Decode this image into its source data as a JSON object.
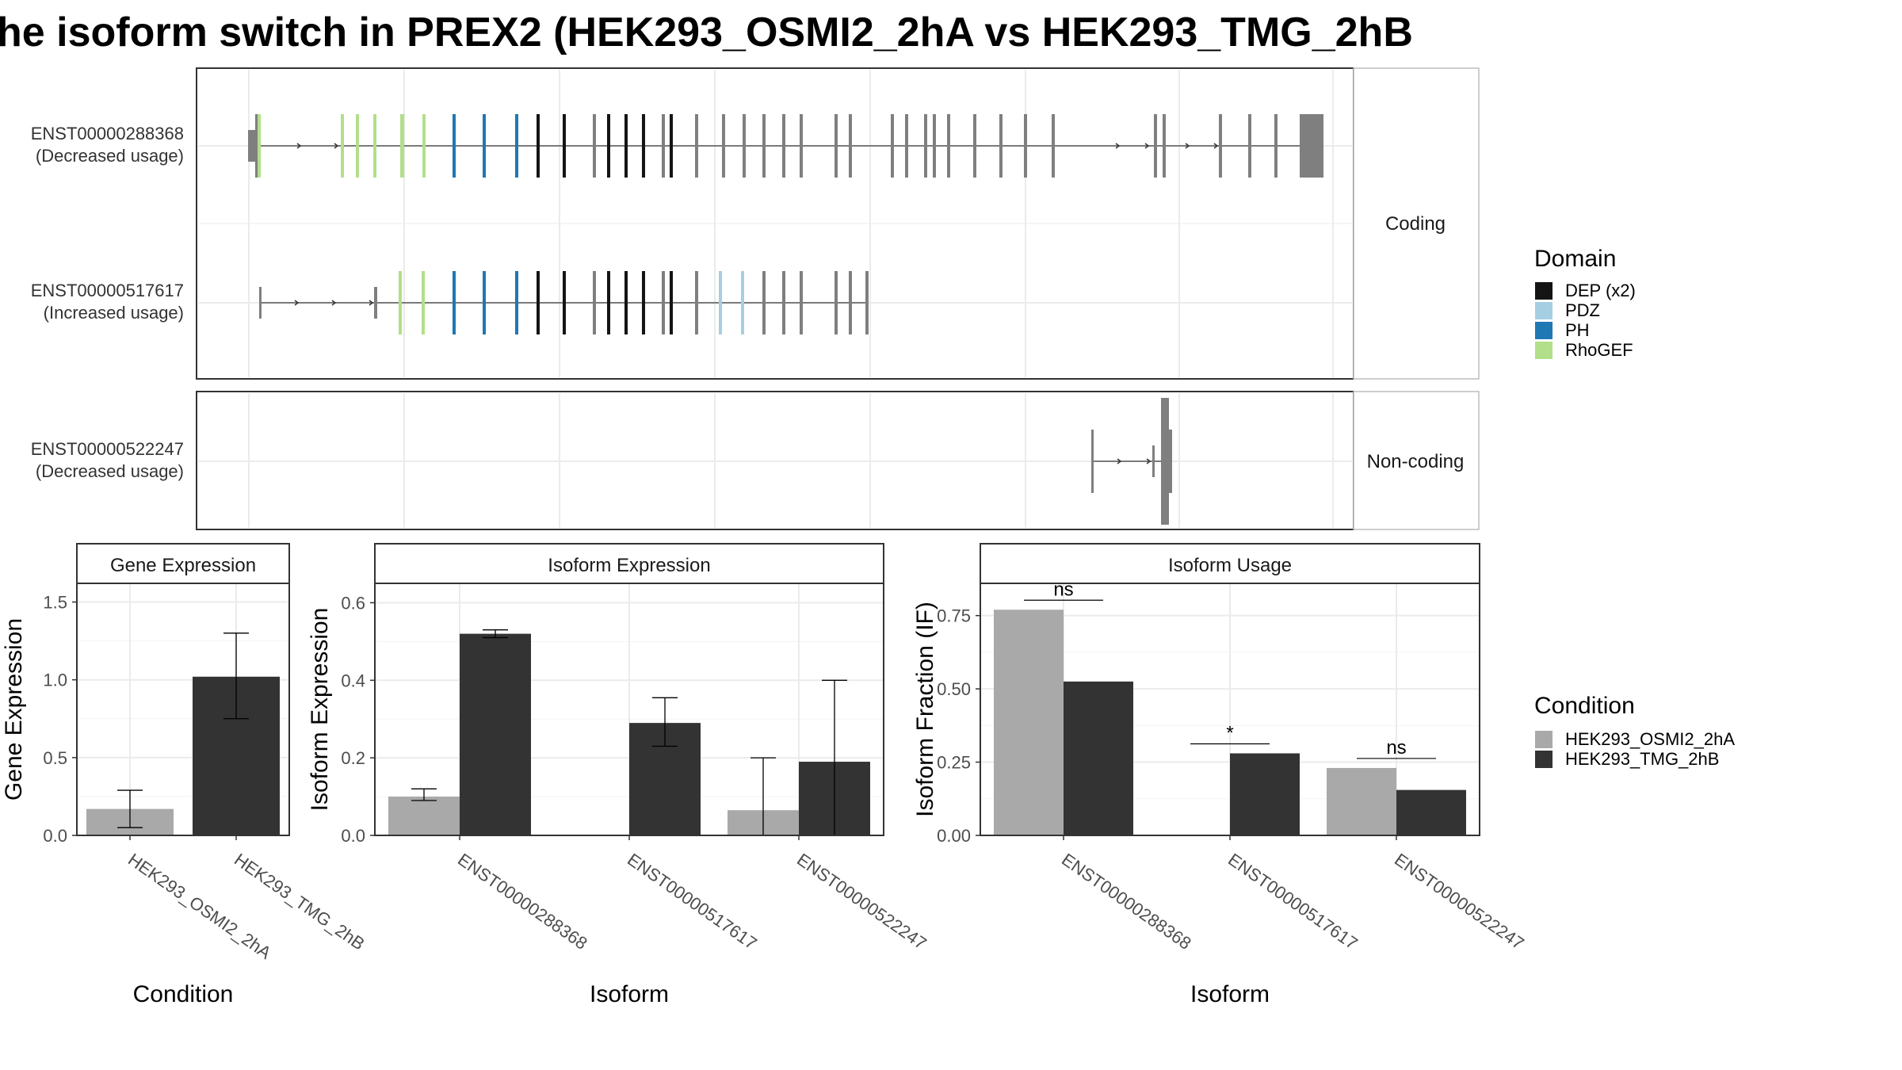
{
  "title": "he isoform switch in PREX2 (HEK293_OSMI2_2hA vs HEK293_TMG_2hB",
  "colors": {
    "dep": "#141414",
    "pdz": "#a6cee3",
    "ph": "#1f78b4",
    "rhogef": "#b2df8a",
    "exon": "#7f7f7f",
    "cond_a": "#a9a9a9",
    "cond_b": "#333333",
    "panel_border": "#333333",
    "strip_bg": "#ffffff",
    "grid": "#ebebeb"
  },
  "transcripts": {
    "t1": {
      "name": "ENST00000288368",
      "usage": "(Decreased usage)"
    },
    "t2": {
      "name": "ENST00000517617",
      "usage": "(Increased usage)"
    },
    "t3": {
      "name": "ENST00000522247",
      "usage": "(Decreased usage)"
    }
  },
  "strips": {
    "coding": "Coding",
    "noncoding": "Non-coding"
  },
  "legend_domain": {
    "title": "Domain",
    "items": [
      {
        "label": "DEP (x2)",
        "color": "#141414"
      },
      {
        "label": "PDZ",
        "color": "#a6cee3"
      },
      {
        "label": "PH",
        "color": "#1f78b4"
      },
      {
        "label": "RhoGEF",
        "color": "#b2df8a"
      }
    ]
  },
  "legend_condition": {
    "title": "Condition",
    "items": [
      {
        "label": "HEK293_OSMI2_2hA",
        "color": "#a9a9a9"
      },
      {
        "label": "HEK293_TMG_2hB",
        "color": "#333333"
      }
    ]
  },
  "chart_data": [
    {
      "type": "bar",
      "title": "Gene Expression",
      "xlabel": "Condition",
      "ylabel": "Gene Expression",
      "categories": [
        "HEK293_OSMI2_2hA",
        "HEK293_TMG_2hB"
      ],
      "values": [
        0.17,
        1.02
      ],
      "error_low": [
        0.05,
        0.75
      ],
      "error_high": [
        0.29,
        1.3
      ],
      "ylim": [
        0,
        1.62
      ],
      "yticks": [
        "0.0",
        "0.5",
        "1.0",
        "1.5"
      ]
    },
    {
      "type": "bar",
      "title": "Isoform Expression",
      "xlabel": "Isoform",
      "ylabel": "Isoform Expression",
      "categories": [
        "ENST00000288368",
        "ENST00000517617",
        "ENST00000522247"
      ],
      "series": [
        {
          "name": "HEK293_OSMI2_2hA",
          "values": [
            0.1,
            0.0,
            0.065
          ],
          "error_low": [
            0.09,
            0.0,
            0.0
          ],
          "error_high": [
            0.12,
            0.0,
            0.2
          ]
        },
        {
          "name": "HEK293_TMG_2hB",
          "values": [
            0.52,
            0.29,
            0.19
          ],
          "error_low": [
            0.51,
            0.23,
            0.0
          ],
          "error_high": [
            0.53,
            0.355,
            0.4
          ]
        }
      ],
      "ylim": [
        0,
        0.65
      ],
      "yticks": [
        "0.0",
        "0.2",
        "0.4",
        "0.6"
      ]
    },
    {
      "type": "bar",
      "title": "Isoform Usage",
      "xlabel": "Isoform",
      "ylabel": "Isoform Fraction (IF)",
      "categories": [
        "ENST00000288368",
        "ENST00000517617",
        "ENST00000522247"
      ],
      "series": [
        {
          "name": "HEK293_OSMI2_2hA",
          "values": [
            0.77,
            0.0,
            0.23
          ]
        },
        {
          "name": "HEK293_TMG_2hB",
          "values": [
            0.525,
            0.28,
            0.155
          ]
        }
      ],
      "significance": [
        "ns",
        "*",
        "ns"
      ],
      "ylim": [
        0,
        0.86
      ],
      "yticks": [
        "0.00",
        "0.25",
        "0.50",
        "0.75"
      ]
    }
  ]
}
